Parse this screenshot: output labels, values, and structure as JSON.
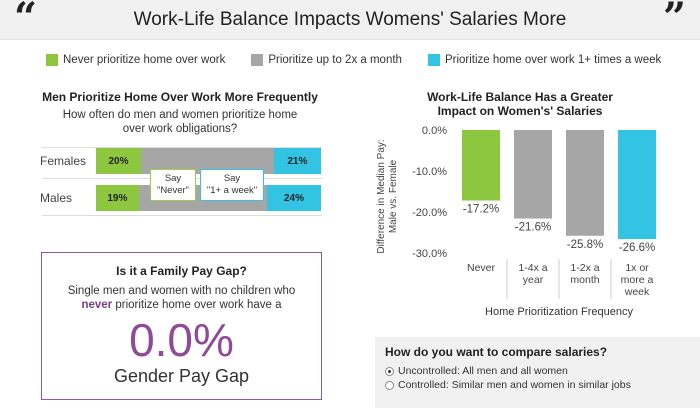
{
  "header": {
    "title": "Work-Life Balance Impacts Womens' Salaries More",
    "open_quote": "“",
    "close_quote": "”"
  },
  "colors": {
    "never": "#8dc63f",
    "up_to_2x": "#a6a6a6",
    "one_plus": "#32c4e2",
    "accent_purple": "#8f4a98"
  },
  "legend": [
    {
      "label": "Never prioritize home over work",
      "color": "#8dc63f"
    },
    {
      "label": "Prioritize up to 2x a month",
      "color": "#a6a6a6"
    },
    {
      "label": "Prioritize home over work 1+ times a week",
      "color": "#32c4e2"
    }
  ],
  "left_chart": {
    "title": "Men Prioritize Home Over Work More Frequently",
    "subtitle": "How often do men and women prioritize home over work obligations?",
    "rows": [
      {
        "label": "Females",
        "never": 20,
        "never_text": "20%",
        "middle": 59,
        "weekly": 21,
        "weekly_text": "21%"
      },
      {
        "label": "Males",
        "never": 19,
        "never_text": "19%",
        "middle": 57,
        "weekly": 24,
        "weekly_text": "24%"
      }
    ],
    "callout_never_line1": "Say",
    "callout_never_line2": "\"Never\"",
    "callout_weekly_line1": "Say",
    "callout_weekly_line2": "\"1+ a week\""
  },
  "family_gap": {
    "title": "Is it a Family Pay Gap?",
    "text_before": "Single men and women with no children who",
    "text_emphasis": "never",
    "text_after": "prioritize home over work have a",
    "value": "0.0%",
    "label": "Gender Pay Gap"
  },
  "right_chart": {
    "title_line1": "Work-Life Balance Has a Greater",
    "title_line2": "Impact on Women's' Salaries"
  },
  "chart_data": {
    "type": "bar",
    "title": "Work-Life Balance Has a Greater Impact on Women's' Salaries",
    "xlabel": "Home Prioritization Frequency",
    "ylabel": "Difference in Median Pay: Male vs. Female",
    "ylabel_lines": [
      "Difference in Median Pay:",
      "Male vs. Female"
    ],
    "categories": [
      [
        "Never"
      ],
      [
        "1-4x a",
        "year"
      ],
      [
        "1-2x a",
        "month"
      ],
      [
        "1x or",
        "more a",
        "week"
      ]
    ],
    "values": [
      -17.2,
      -21.6,
      -25.8,
      -26.6
    ],
    "value_labels": [
      "-17.2%",
      "-21.6%",
      "-25.8%",
      "-26.6%"
    ],
    "bar_colors": [
      "#8dc63f",
      "#a6a6a6",
      "#a6a6a6",
      "#32c4e2"
    ],
    "ylim": [
      -30,
      0
    ],
    "yticks": [
      0,
      -10,
      -20,
      -30
    ],
    "ytick_labels": [
      "0.0%",
      "-10.0%",
      "-20.0%",
      "-30.0%"
    ],
    "grid": false
  },
  "compare": {
    "title": "How do you want to compare salaries?",
    "options": [
      {
        "label": "Uncontrolled: All men and all women",
        "selected": true
      },
      {
        "label": "Controlled: Similar men and women in similar jobs",
        "selected": false
      }
    ]
  }
}
